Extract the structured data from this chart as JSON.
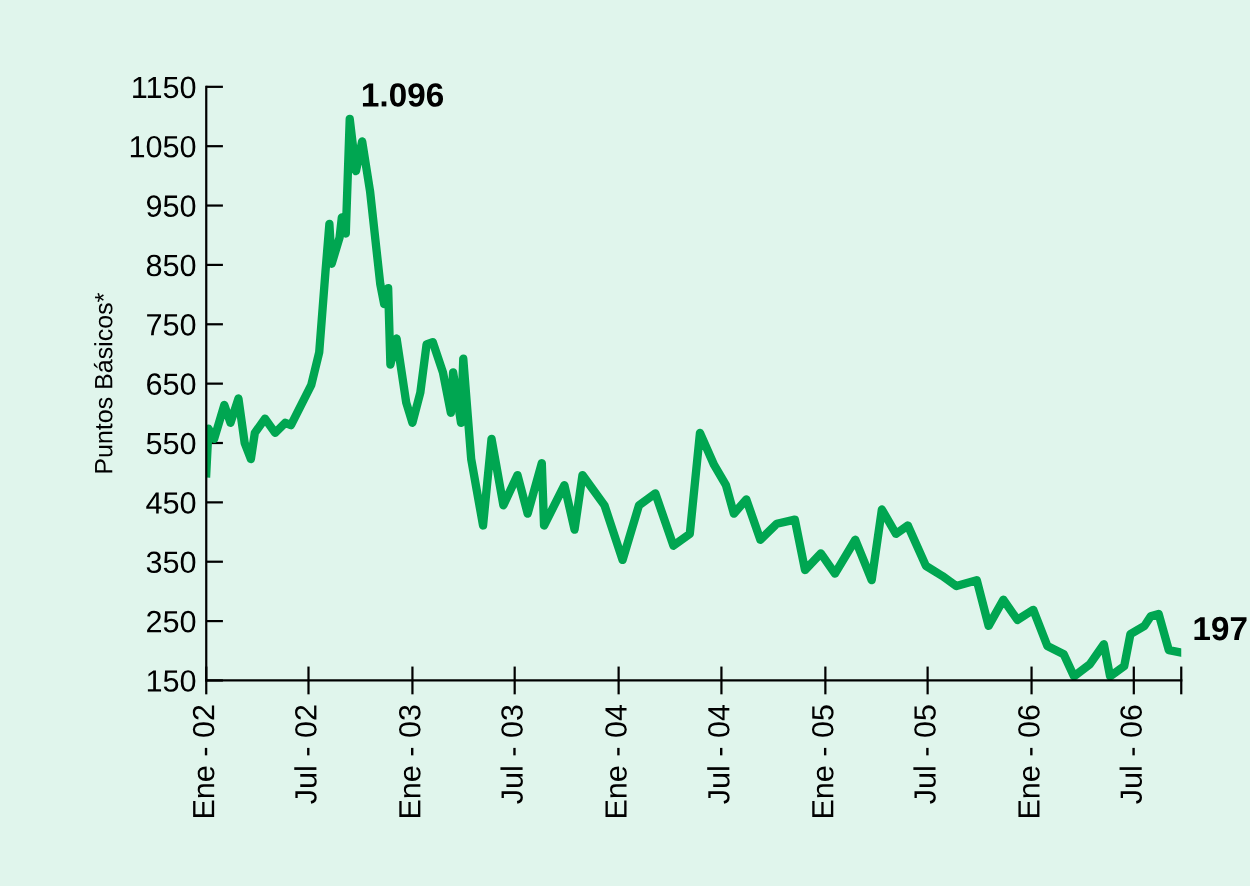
{
  "chart_data": {
    "type": "line",
    "ylabel": "Puntos Básicos*",
    "x": [
      "2002-01-01",
      "2002-01-05",
      "2002-01-15",
      "2002-02-02",
      "2002-02-13",
      "2002-02-27",
      "2002-03-10",
      "2002-03-21",
      "2002-03-28",
      "2002-04-15",
      "2002-05-03",
      "2002-05-21",
      "2002-05-31",
      "2002-07-06",
      "2002-07-20",
      "2002-07-31",
      "2002-08-07",
      "2002-08-11",
      "2002-08-25",
      "2002-08-29",
      "2002-09-05",
      "2002-09-12",
      "2002-09-23",
      "2002-10-04",
      "2002-10-18",
      "2002-11-05",
      "2002-11-12",
      "2002-11-19",
      "2002-11-23",
      "2002-12-04",
      "2002-12-21",
      "2003-01-01",
      "2003-01-15",
      "2003-01-26",
      "2003-02-06",
      "2003-02-24",
      "2003-03-10",
      "2003-03-14",
      "2003-03-28",
      "2003-04-01",
      "2003-04-15",
      "2003-05-06",
      "2003-05-21",
      "2003-06-11",
      "2003-07-06",
      "2003-07-24",
      "2003-08-18",
      "2003-08-22",
      "2003-09-27",
      "2003-10-15",
      "2003-10-29",
      "2003-12-07",
      "2004-01-08",
      "2004-02-06",
      "2004-03-06",
      "2004-04-07",
      "2004-05-06",
      "2004-05-24",
      "2004-06-18",
      "2004-07-09",
      "2004-07-23",
      "2004-08-14",
      "2004-09-08",
      "2004-10-07",
      "2004-11-08",
      "2004-11-26",
      "2004-12-24",
      "2005-01-18",
      "2005-02-23",
      "2005-03-24",
      "2005-04-11",
      "2005-05-06",
      "2005-05-27",
      "2005-06-28",
      "2005-07-27",
      "2005-08-21",
      "2005-09-26",
      "2005-10-17",
      "2005-11-12",
      "2005-12-07",
      "2006-01-04",
      "2006-01-29",
      "2006-02-27",
      "2006-03-17",
      "2006-04-14",
      "2006-05-09",
      "2006-05-20",
      "2006-06-14",
      "2006-06-25",
      "2006-07-20",
      "2006-07-31",
      "2006-08-14",
      "2006-09-01",
      "2006-09-23"
    ],
    "series": [
      {
        "color": "#00a651",
        "values": [
          499,
          574,
          557,
          614,
          584,
          625,
          550,
          523,
          567,
          591,
          567,
          584,
          580,
          648,
          703,
          838,
          919,
          852,
          896,
          930,
          903,
          1096,
          1008,
          1058,
          974,
          818,
          784,
          811,
          682,
          726,
          618,
          584,
          635,
          716,
          720,
          669,
          601,
          669,
          584,
          692,
          523,
          411,
          557,
          445,
          496,
          431,
          516,
          411,
          479,
          404,
          496,
          445,
          353,
          445,
          465,
          377,
          397,
          567,
          513,
          479,
          431,
          455,
          387,
          414,
          421,
          336,
          364,
          330,
          387,
          319,
          438,
          397,
          411,
          343,
          326,
          309,
          319,
          242,
          286,
          252,
          269,
          208,
          194,
          157,
          177,
          211,
          157,
          174,
          228,
          242,
          258,
          262,
          201,
          197
        ]
      }
    ],
    "xlim": [
      "2002-01-01",
      "2006-09-23"
    ],
    "xticks": [
      {
        "value": "2002-01-01",
        "label": "Ene - 02"
      },
      {
        "value": "2002-07-01",
        "label": "Jul - 02"
      },
      {
        "value": "2003-01-01",
        "label": "Ene - 03"
      },
      {
        "value": "2003-07-01",
        "label": "Jul - 03"
      },
      {
        "value": "2004-01-01",
        "label": "Ene - 04"
      },
      {
        "value": "2004-07-01",
        "label": "Jul - 04"
      },
      {
        "value": "2005-01-01",
        "label": "Ene - 05"
      },
      {
        "value": "2005-07-01",
        "label": "Jul - 05"
      },
      {
        "value": "2006-01-01",
        "label": "Ene - 06"
      },
      {
        "value": "2006-07-01",
        "label": "Jul - 06"
      },
      {
        "value": "2006-09-23",
        "label": null
      }
    ],
    "ylim": [
      150,
      1150
    ],
    "yticks": [
      150,
      250,
      350,
      450,
      550,
      650,
      750,
      850,
      950,
      1050,
      1150
    ],
    "grid": false,
    "legend": false,
    "marker": "none",
    "line_style": "solid",
    "annotations": [
      {
        "text": "1.096",
        "x": "2002-09-12",
        "y": 1096
      },
      {
        "text": "197",
        "x": "2006-09-23",
        "y": 197
      }
    ]
  }
}
